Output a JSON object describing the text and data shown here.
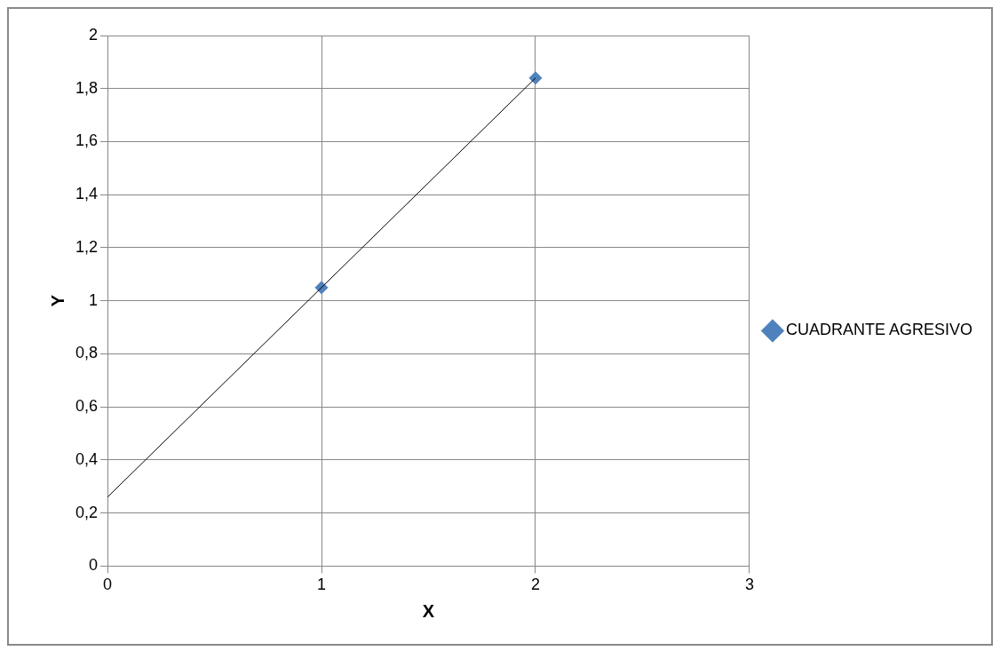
{
  "chart_data": {
    "type": "scatter",
    "xlabel": "X",
    "ylabel": "Y",
    "xlim": [
      0,
      3
    ],
    "xticks": [
      0,
      1,
      2,
      3
    ],
    "ylim": [
      0,
      2
    ],
    "yticks": [
      0,
      {
        "value": 0.2,
        "label": "0,2"
      },
      {
        "value": 0.4,
        "label": "0,4"
      },
      {
        "value": 0.6,
        "label": "0,6"
      },
      {
        "value": 0.8,
        "label": "0,8"
      },
      1,
      {
        "value": 1.2,
        "label": "1,2"
      },
      {
        "value": 1.4,
        "label": "1,4"
      },
      {
        "value": 1.6,
        "label": "1,6"
      },
      {
        "value": 1.8,
        "label": "1,8"
      },
      2
    ],
    "grid": true,
    "legend": "right",
    "marker": "diamond",
    "series": [
      {
        "name": "CUADRANTE AGRESIVO",
        "color": "#4f81bd",
        "x": [
          1,
          2
        ],
        "values": [
          1.05,
          1.84
        ]
      },
      {
        "type": "line",
        "color": "#000000",
        "x": [
          0,
          2
        ],
        "values": [
          0.26,
          1.84
        ],
        "marker": "none",
        "line_style": "solid"
      }
    ]
  }
}
